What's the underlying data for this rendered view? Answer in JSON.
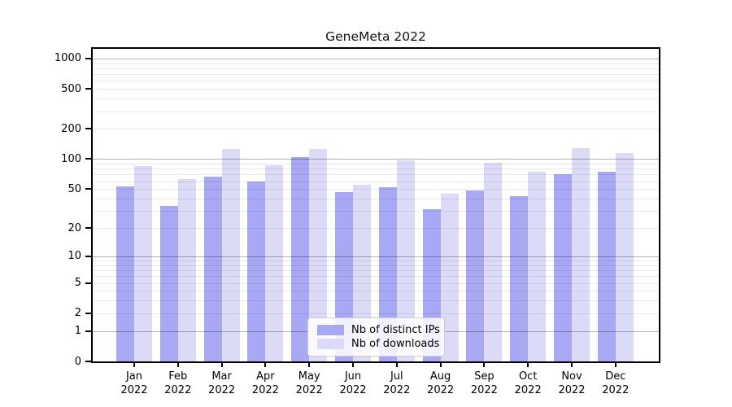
{
  "title": "GeneMeta 2022",
  "legend": {
    "items": [
      {
        "label": "Nb of distinct IPs",
        "color": "#a8a8f5"
      },
      {
        "label": "Nb of downloads",
        "color": "#dbdbf8"
      }
    ]
  },
  "chart_data": {
    "type": "bar",
    "title": "GeneMeta 2022",
    "categories": [
      "Jan 2022",
      "Feb 2022",
      "Mar 2022",
      "Apr 2022",
      "May 2022",
      "Jun 2022",
      "Jul 2022",
      "Aug 2022",
      "Sep 2022",
      "Oct 2022",
      "Nov 2022",
      "Dec 2022"
    ],
    "series": [
      {
        "name": "Nb of distinct IPs",
        "color": "#a8a8f5",
        "values": [
          53,
          34,
          67,
          60,
          104,
          47,
          52,
          31,
          48,
          42,
          70,
          74
        ]
      },
      {
        "name": "Nb of downloads",
        "color": "#dbdbf8",
        "values": [
          85,
          63,
          126,
          86,
          126,
          55,
          98,
          45,
          91,
          75,
          129,
          116
        ]
      }
    ],
    "xlabel": "",
    "ylabel": "",
    "y_scale": "log10(1+y)",
    "ylim": [
      0,
      1250
    ],
    "yticks": [
      0,
      1,
      2,
      5,
      10,
      20,
      50,
      100,
      200,
      500,
      1000
    ],
    "y_major_gridlines": [
      1,
      10,
      100,
      1000
    ],
    "y_minor_gridlines": [
      2,
      3,
      4,
      5,
      6,
      7,
      8,
      9,
      20,
      30,
      40,
      50,
      60,
      70,
      80,
      90,
      200,
      300,
      400,
      500,
      600,
      700,
      800,
      900
    ],
    "grid": "horizontal",
    "legend_position": "lower center"
  }
}
